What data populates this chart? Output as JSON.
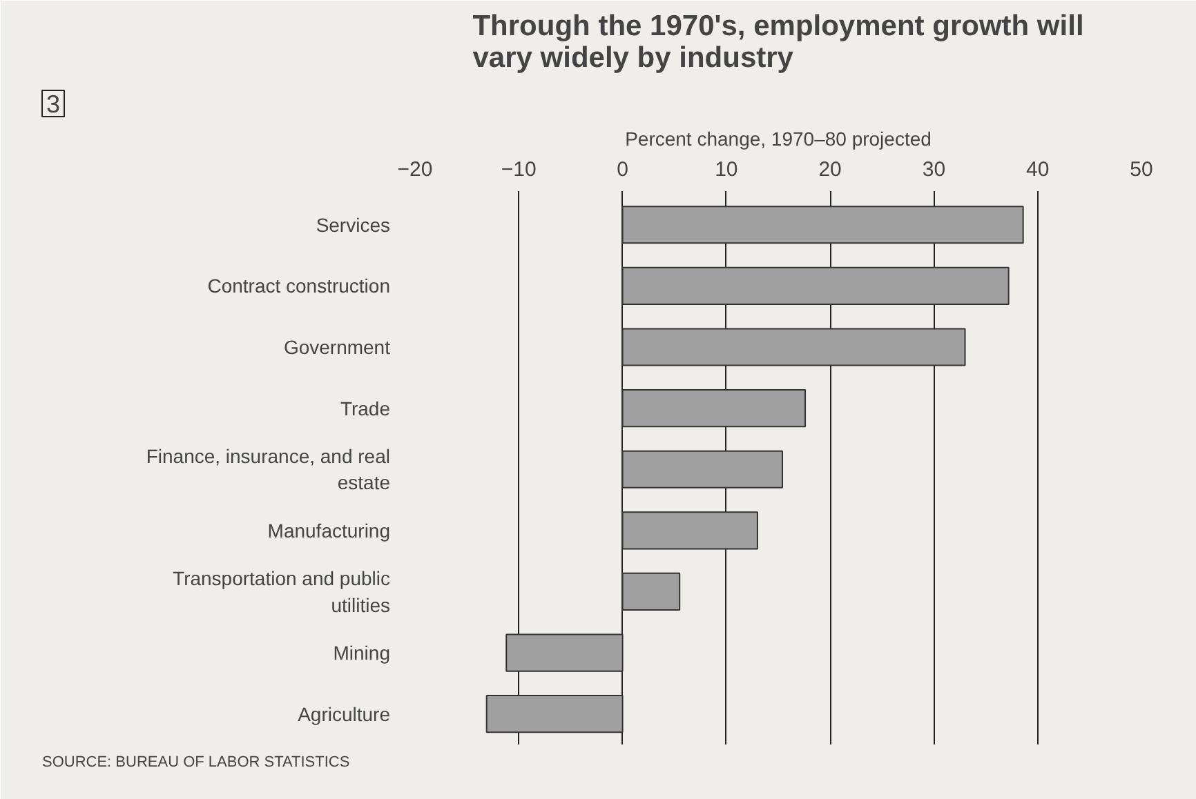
{
  "chart_data": {
    "type": "bar",
    "orientation": "horizontal",
    "title": "Through the 1970's, employment growth will\nvary widely by industry",
    "xlabel": "Percent change, 1970–80 projected",
    "categories": [
      "Services",
      "Contract construction",
      "Government",
      "Trade",
      "Finance, insurance, and real estate",
      "Manufacturing",
      "Transportation and public utilities",
      "Mining",
      "Agriculture"
    ],
    "values": [
      38.6,
      37.2,
      33.0,
      17.6,
      15.4,
      13.0,
      5.5,
      -11.2,
      -13.1
    ],
    "color": "#a0a0a0",
    "xlim": [
      -20,
      50
    ],
    "xticks": [
      {
        "value": -20,
        "label": "−20"
      },
      {
        "value": -10,
        "label": "−10"
      },
      0,
      10,
      20,
      30,
      40,
      50
    ],
    "grid": "x",
    "annotations": [
      "3",
      "SOURCE: BUREAU OF LABOR STATISTICS"
    ]
  }
}
